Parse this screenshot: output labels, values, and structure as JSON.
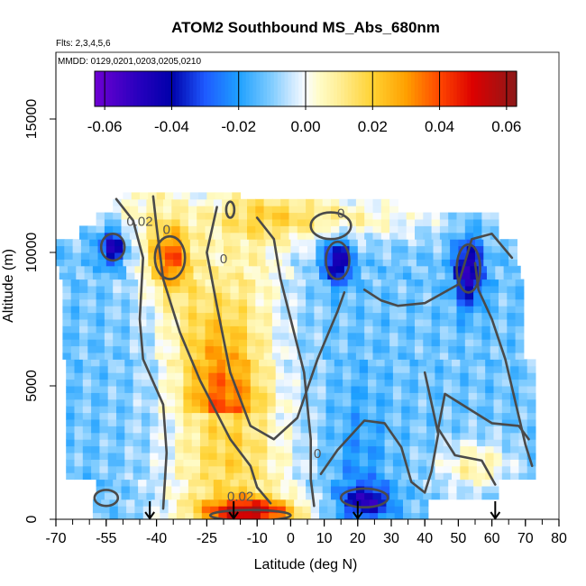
{
  "chart_data": {
    "type": "heatmap",
    "title": "ATOM2 Southbound MS_Abs_680nm",
    "subtitle_flights": "Flts: 2,3,4,5,6",
    "subtitle_dates": "MMDD: 0129,0201,0203,0205,0210",
    "xlabel": "Latitude (deg N)",
    "ylabel": "Altitude (m)",
    "xlim": [
      -70,
      80
    ],
    "ylim": [
      0,
      17500
    ],
    "x_tick_labels": [
      "-70",
      "-55",
      "-40",
      "-25",
      "-10",
      "0",
      "10",
      "20",
      "30",
      "40",
      "50",
      "60",
      "70",
      "80"
    ],
    "x_major_ticks": [
      -70,
      -55,
      -40,
      -25,
      -10,
      0,
      10,
      20,
      30,
      40,
      50,
      60,
      70,
      80
    ],
    "y_tick_labels": [
      "0",
      "5000",
      "10000",
      "15000"
    ],
    "y_ticks": [
      0,
      5000,
      10000,
      15000
    ],
    "colorbar": {
      "range": [
        -0.063,
        0.063
      ],
      "tick_labels": [
        "-0.06",
        "-0.04",
        "-0.02",
        "0.00",
        "0.02",
        "0.04",
        "0.06"
      ],
      "ticks": [
        -0.06,
        -0.04,
        -0.02,
        0.0,
        0.02,
        0.04,
        0.06
      ],
      "colors": [
        "#5a00c8",
        "#0000b4",
        "#2266ff",
        "#22aaff",
        "#aaddff",
        "#ffffff",
        "#ffff99",
        "#ffd700",
        "#ff9900",
        "#ff2200",
        "#cc0000",
        "#8b1a1a"
      ]
    },
    "contour_labels": [
      {
        "text": "0.02",
        "lat": -45,
        "alt": 11000
      },
      {
        "text": "0",
        "lat": -37,
        "alt": 10700
      },
      {
        "text": "0",
        "lat": -20,
        "alt": 9600
      },
      {
        "text": "0",
        "lat": 15,
        "alt": 11300
      },
      {
        "text": "0",
        "lat": 8,
        "alt": 2300
      },
      {
        "text": "0.02",
        "lat": -15,
        "alt": 700
      }
    ],
    "flight_arrows_lat": [
      -42,
      -17,
      20,
      61
    ]
  }
}
